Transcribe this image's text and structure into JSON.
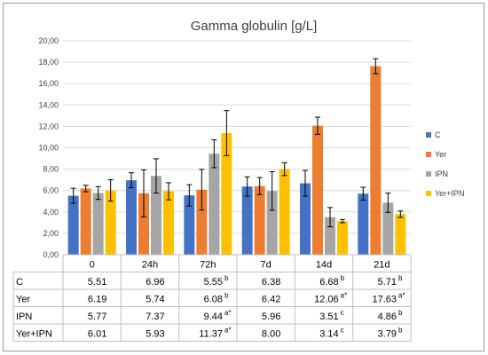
{
  "chart_data": {
    "type": "bar",
    "title": "Gamma globulin  [g/L]",
    "categories": [
      "0",
      "24h",
      "72h",
      "7d",
      "14d",
      "21d"
    ],
    "ylim": [
      0,
      20
    ],
    "ytick_step": 2,
    "ytick_labels": [
      "0,00",
      "2,00",
      "4,00",
      "6,00",
      "8,00",
      "10,00",
      "12,00",
      "14,00",
      "16,00",
      "18,00",
      "20,00"
    ],
    "grid": true,
    "legend_position": "right",
    "series": [
      {
        "name": "C",
        "color": "#4472C4",
        "values": [
          5.51,
          6.96,
          5.55,
          6.38,
          6.68,
          5.71
        ],
        "errors": [
          0.7,
          0.7,
          1.0,
          0.9,
          1.2,
          0.6
        ],
        "table_values": [
          "5.51",
          "6.96",
          "5.55",
          "6.38",
          "6.68",
          "5.71"
        ],
        "marks": [
          "",
          "",
          "b",
          "",
          "b",
          "b"
        ]
      },
      {
        "name": "Yer",
        "color": "#ED7D31",
        "values": [
          6.19,
          5.74,
          6.08,
          6.42,
          12.06,
          17.63
        ],
        "errors": [
          0.3,
          2.2,
          1.9,
          0.8,
          0.8,
          0.7
        ],
        "table_values": [
          "6.19",
          "5.74",
          "6.08",
          "6.42",
          "12.06",
          "17.63"
        ],
        "marks": [
          "",
          "",
          "b",
          "",
          "a*",
          "a*"
        ]
      },
      {
        "name": "IPN",
        "color": "#A5A5A5",
        "values": [
          5.77,
          7.37,
          9.44,
          5.96,
          3.51,
          4.86
        ],
        "errors": [
          0.6,
          1.6,
          1.3,
          1.8,
          0.9,
          0.9
        ],
        "table_values": [
          "5.77",
          "7.37",
          "9.44",
          "5.96",
          "3.51",
          "4.86"
        ],
        "marks": [
          "",
          "",
          "a*",
          "",
          "c",
          "b"
        ]
      },
      {
        "name": "Yer+IPN",
        "color": "#FFC000",
        "values": [
          6.01,
          5.93,
          11.37,
          8.0,
          3.14,
          3.79
        ],
        "errors": [
          1.0,
          0.8,
          2.1,
          0.6,
          0.15,
          0.3
        ],
        "table_values": [
          "6.01",
          "5.93",
          "11.37",
          "8.00",
          "3.14",
          "3.79"
        ],
        "marks": [
          "",
          "",
          "a*",
          "",
          "c",
          "b"
        ]
      }
    ]
  }
}
